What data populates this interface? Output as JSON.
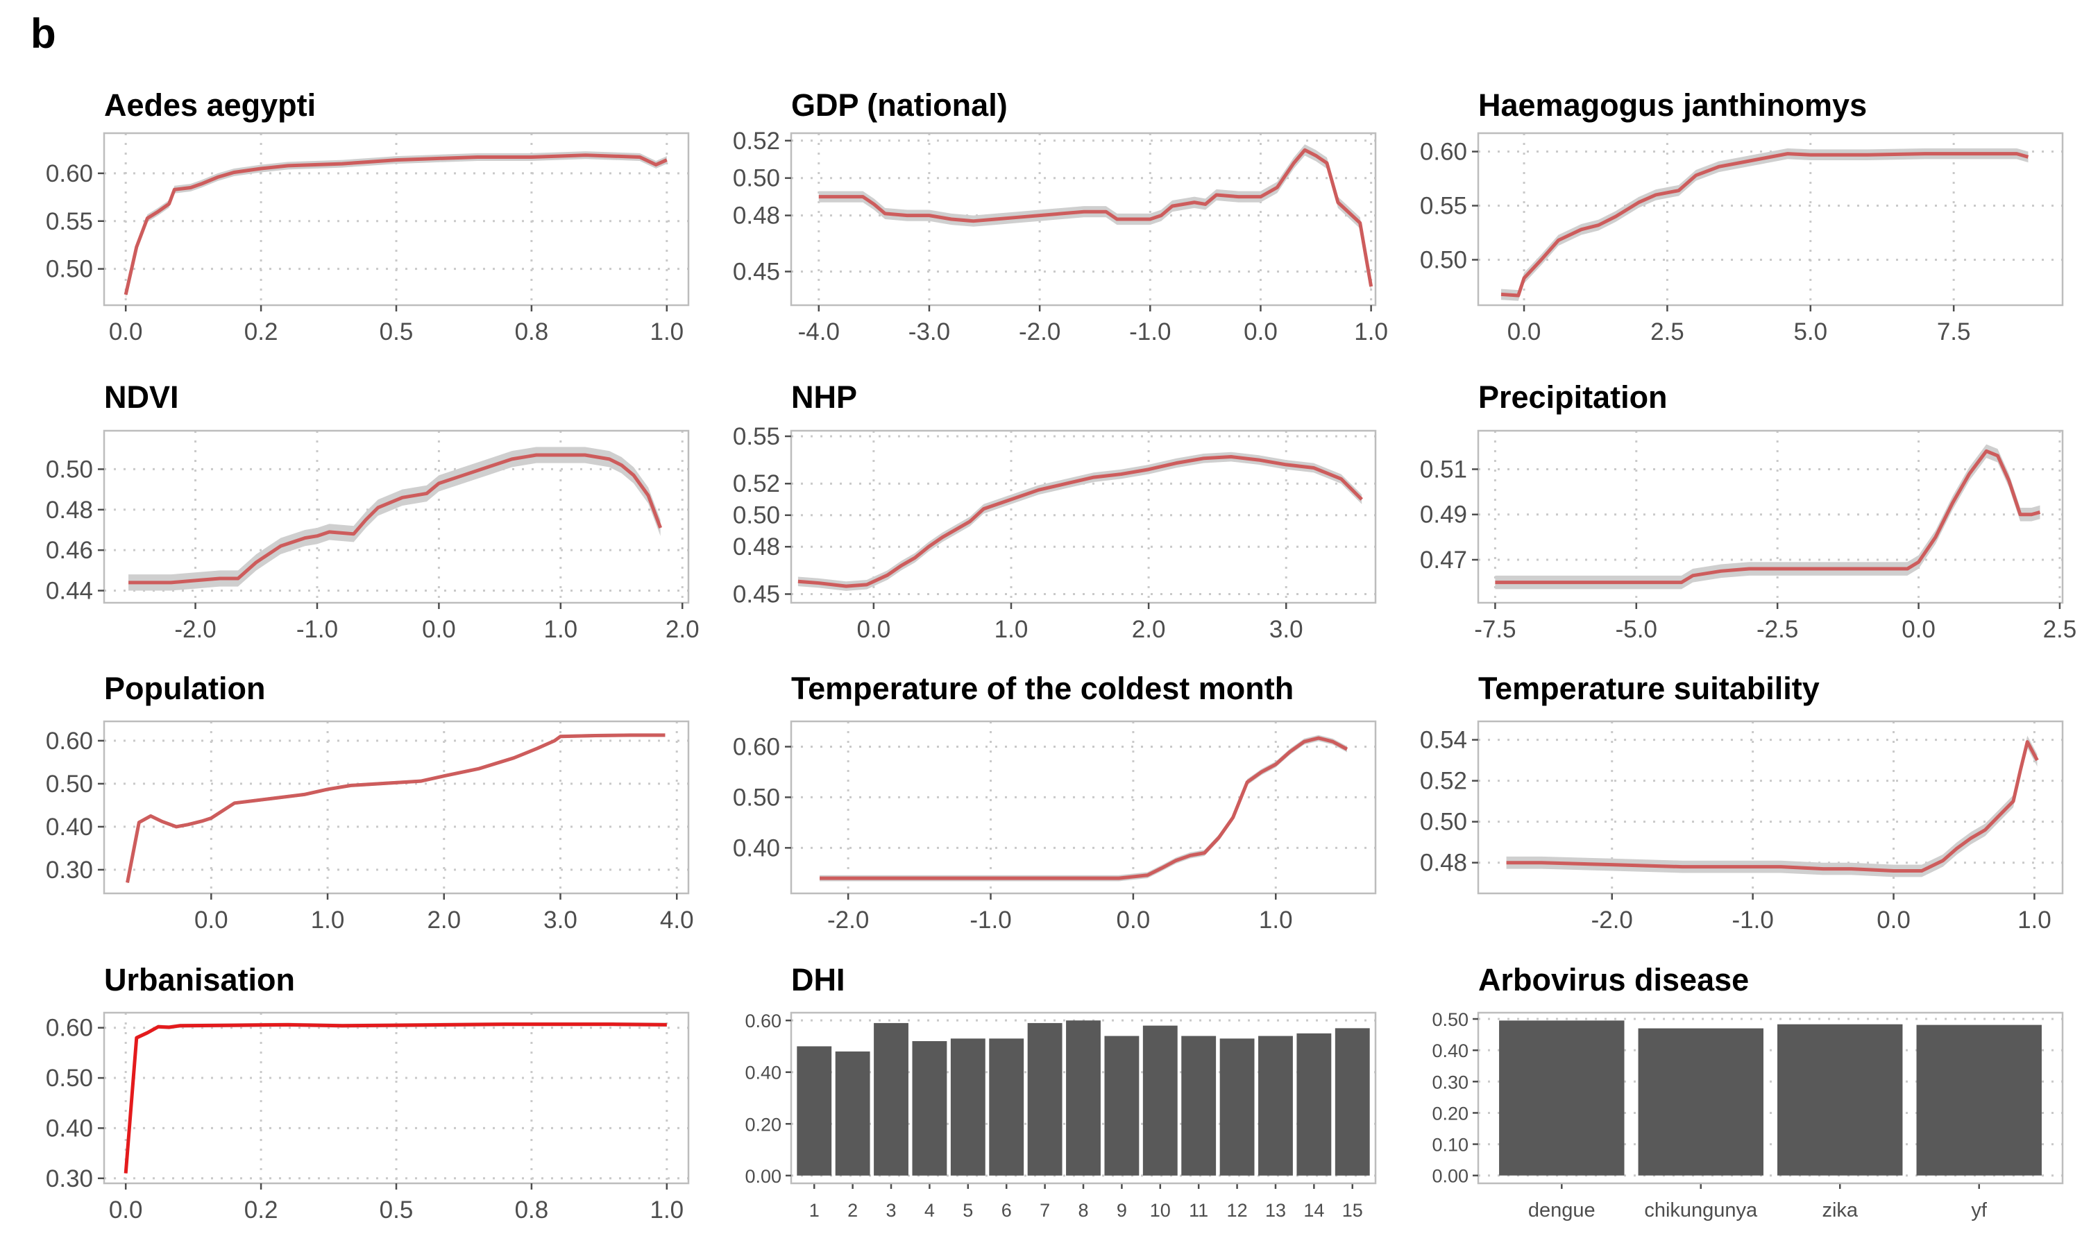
{
  "figure": {
    "panel_label": "b"
  },
  "colors": {
    "line": "#cd5c5c",
    "line_bright": "#e41a1c",
    "ribbon": "#cfcfcf",
    "bar": "#595959",
    "grid": "#c9c9c9",
    "frame": "#bdbdbd",
    "tick_text": "#4d4d4d",
    "title_text": "#000000"
  },
  "chart_data": [
    {
      "type": "line",
      "title": "Aedes aegypti",
      "xlabel": "",
      "ylabel": "",
      "xlim": [
        -0.04,
        1.04
      ],
      "ylim": [
        0.462,
        0.642
      ],
      "xticks": [
        0.0,
        0.25,
        0.5,
        0.75,
        1.0
      ],
      "xtick_labels": [
        "0.0",
        "0.2",
        "0.5",
        "0.8",
        "1.0"
      ],
      "yticks": [
        0.5,
        0.55,
        0.6
      ],
      "ytick_labels": [
        "0.50",
        "0.55",
        "0.60"
      ],
      "ribbon": 0.004,
      "series": [
        {
          "x": [
            0.0,
            0.02,
            0.04,
            0.06,
            0.08,
            0.09,
            0.12,
            0.14,
            0.17,
            0.2,
            0.25,
            0.3,
            0.35,
            0.4,
            0.45,
            0.5,
            0.55,
            0.6,
            0.65,
            0.7,
            0.75,
            0.8,
            0.85,
            0.9,
            0.95,
            0.98,
            1.0
          ],
          "y": [
            0.473,
            0.523,
            0.553,
            0.56,
            0.568,
            0.583,
            0.585,
            0.589,
            0.596,
            0.601,
            0.605,
            0.608,
            0.609,
            0.61,
            0.612,
            0.614,
            0.615,
            0.616,
            0.617,
            0.617,
            0.617,
            0.618,
            0.619,
            0.618,
            0.617,
            0.609,
            0.614
          ]
        }
      ]
    },
    {
      "type": "line",
      "title": "GDP (national)",
      "xlabel": "",
      "ylabel": "",
      "xlim": [
        -4.25,
        1.04
      ],
      "ylim": [
        0.432,
        0.524
      ],
      "xticks": [
        -4.0,
        -3.0,
        -2.0,
        -1.0,
        0.0,
        1.0
      ],
      "xtick_labels": [
        "-4.0",
        "-3.0",
        "-2.0",
        "-1.0",
        "0.0",
        "1.0"
      ],
      "yticks": [
        0.45,
        0.48,
        0.5,
        0.52
      ],
      "ytick_labels": [
        "0.45",
        "0.48",
        "0.50",
        "0.52"
      ],
      "ribbon": 0.003,
      "series": [
        {
          "x": [
            -4.0,
            -3.8,
            -3.6,
            -3.5,
            -3.4,
            -3.2,
            -3.0,
            -2.8,
            -2.6,
            -2.4,
            -2.2,
            -2.0,
            -1.8,
            -1.6,
            -1.4,
            -1.3,
            -1.2,
            -1.0,
            -0.9,
            -0.8,
            -0.6,
            -0.5,
            -0.4,
            -0.2,
            0.0,
            0.15,
            0.3,
            0.4,
            0.5,
            0.6,
            0.7,
            0.9,
            1.0
          ],
          "y": [
            0.49,
            0.49,
            0.49,
            0.486,
            0.481,
            0.48,
            0.48,
            0.478,
            0.477,
            0.478,
            0.479,
            0.48,
            0.481,
            0.482,
            0.482,
            0.478,
            0.478,
            0.478,
            0.48,
            0.485,
            0.487,
            0.486,
            0.491,
            0.49,
            0.49,
            0.495,
            0.508,
            0.515,
            0.512,
            0.508,
            0.487,
            0.476,
            0.442
          ]
        }
      ]
    },
    {
      "type": "line",
      "title": "Haemagogus janthinomys",
      "xlabel": "",
      "ylabel": "",
      "xlim": [
        -0.8,
        9.4
      ],
      "ylim": [
        0.458,
        0.617
      ],
      "xticks": [
        0.0,
        2.5,
        5.0,
        7.5
      ],
      "xtick_labels": [
        "0.0",
        "2.5",
        "5.0",
        "7.5"
      ],
      "yticks": [
        0.5,
        0.55,
        0.6
      ],
      "ytick_labels": [
        "0.50",
        "0.55",
        "0.60"
      ],
      "ribbon": 0.005,
      "series": [
        {
          "x": [
            -0.4,
            -0.1,
            0.0,
            0.3,
            0.6,
            1.0,
            1.3,
            1.6,
            2.0,
            2.3,
            2.7,
            3.0,
            3.4,
            3.8,
            4.2,
            4.6,
            5.0,
            6.0,
            7.0,
            8.0,
            8.6,
            8.8
          ],
          "y": [
            0.468,
            0.467,
            0.483,
            0.5,
            0.518,
            0.528,
            0.532,
            0.54,
            0.553,
            0.56,
            0.564,
            0.578,
            0.586,
            0.59,
            0.594,
            0.598,
            0.597,
            0.597,
            0.598,
            0.598,
            0.598,
            0.595
          ]
        }
      ]
    },
    {
      "type": "line",
      "title": "NDVI",
      "xlabel": "",
      "ylabel": "",
      "xlim": [
        -2.75,
        2.05
      ],
      "ylim": [
        0.434,
        0.519
      ],
      "xticks": [
        -2.0,
        -1.0,
        0.0,
        1.0,
        2.0
      ],
      "xtick_labels": [
        "-2.0",
        "-1.0",
        "0.0",
        "1.0",
        "2.0"
      ],
      "yticks": [
        0.44,
        0.46,
        0.48,
        0.5
      ],
      "ytick_labels": [
        "0.44",
        "0.46",
        "0.48",
        "0.50"
      ],
      "ribbon": 0.004,
      "series": [
        {
          "x": [
            -2.55,
            -2.2,
            -2.0,
            -1.8,
            -1.65,
            -1.5,
            -1.3,
            -1.1,
            -1.0,
            -0.9,
            -0.7,
            -0.6,
            -0.5,
            -0.3,
            -0.1,
            0.0,
            0.2,
            0.4,
            0.6,
            0.8,
            1.0,
            1.2,
            1.4,
            1.5,
            1.6,
            1.72,
            1.82
          ],
          "y": [
            0.444,
            0.444,
            0.445,
            0.446,
            0.446,
            0.454,
            0.462,
            0.466,
            0.467,
            0.469,
            0.468,
            0.475,
            0.481,
            0.486,
            0.488,
            0.493,
            0.497,
            0.501,
            0.505,
            0.507,
            0.507,
            0.507,
            0.505,
            0.502,
            0.497,
            0.487,
            0.471
          ]
        }
      ]
    },
    {
      "type": "line",
      "title": "NHP",
      "xlabel": "",
      "ylabel": "",
      "xlim": [
        -0.6,
        3.65
      ],
      "ylim": [
        0.4445,
        0.5535
      ],
      "xticks": [
        0.0,
        1.0,
        2.0,
        3.0
      ],
      "xtick_labels": [
        "0.0",
        "1.0",
        "2.0",
        "3.0"
      ],
      "yticks": [
        0.45,
        0.48,
        0.5,
        0.52,
        0.55
      ],
      "ytick_labels": [
        "0.45",
        "0.48",
        "0.50",
        "0.52",
        "0.55"
      ],
      "ribbon": 0.003,
      "series": [
        {
          "x": [
            -0.55,
            -0.4,
            -0.2,
            -0.05,
            0.1,
            0.2,
            0.3,
            0.4,
            0.5,
            0.7,
            0.8,
            1.0,
            1.2,
            1.4,
            1.6,
            1.8,
            2.0,
            2.2,
            2.4,
            2.6,
            2.8,
            3.0,
            3.2,
            3.4,
            3.55
          ],
          "y": [
            0.458,
            0.457,
            0.455,
            0.456,
            0.462,
            0.468,
            0.473,
            0.48,
            0.486,
            0.496,
            0.504,
            0.51,
            0.516,
            0.52,
            0.524,
            0.526,
            0.529,
            0.533,
            0.536,
            0.537,
            0.535,
            0.532,
            0.53,
            0.523,
            0.51
          ]
        }
      ]
    },
    {
      "type": "line",
      "title": "Precipitation",
      "xlabel": "",
      "ylabel": "",
      "xlim": [
        -7.8,
        2.55
      ],
      "ylim": [
        0.451,
        0.527
      ],
      "xticks": [
        -7.5,
        -5.0,
        -2.5,
        0.0,
        2.5
      ],
      "xtick_labels": [
        "-7.5",
        "-5.0",
        "-2.5",
        "0.0",
        "2.5"
      ],
      "yticks": [
        0.47,
        0.49,
        0.51
      ],
      "ytick_labels": [
        "0.47",
        "0.49",
        "0.51"
      ],
      "ribbon": 0.003,
      "series": [
        {
          "x": [
            -7.5,
            -6.5,
            -5.5,
            -5.0,
            -4.5,
            -4.2,
            -4.0,
            -3.5,
            -3.0,
            -2.5,
            -2.0,
            -1.5,
            -1.0,
            -0.5,
            -0.2,
            0.0,
            0.3,
            0.6,
            0.9,
            1.2,
            1.4,
            1.6,
            1.8,
            2.0,
            2.15
          ],
          "y": [
            0.46,
            0.46,
            0.46,
            0.46,
            0.46,
            0.46,
            0.463,
            0.465,
            0.466,
            0.466,
            0.466,
            0.466,
            0.466,
            0.466,
            0.466,
            0.469,
            0.48,
            0.495,
            0.508,
            0.518,
            0.516,
            0.505,
            0.49,
            0.49,
            0.491
          ]
        }
      ]
    },
    {
      "type": "line",
      "title": "Population",
      "xlabel": "",
      "ylabel": "",
      "xlim": [
        -0.92,
        4.1
      ],
      "ylim": [
        0.245,
        0.645
      ],
      "xticks": [
        0.0,
        1.0,
        2.0,
        3.0,
        4.0
      ],
      "xtick_labels": [
        "0.0",
        "1.0",
        "2.0",
        "3.0",
        "4.0"
      ],
      "yticks": [
        0.3,
        0.4,
        0.5,
        0.6
      ],
      "ytick_labels": [
        "0.30",
        "0.40",
        "0.50",
        "0.60"
      ],
      "ribbon": 0.004,
      "series": [
        {
          "x": [
            -0.72,
            -0.62,
            -0.52,
            -0.42,
            -0.3,
            -0.2,
            -0.08,
            0.0,
            0.2,
            0.5,
            0.8,
            1.0,
            1.2,
            1.5,
            1.8,
            2.0,
            2.3,
            2.6,
            2.8,
            2.95,
            3.0,
            3.3,
            3.6,
            3.9
          ],
          "y": [
            0.27,
            0.41,
            0.425,
            0.412,
            0.4,
            0.405,
            0.413,
            0.42,
            0.455,
            0.465,
            0.475,
            0.487,
            0.496,
            0.501,
            0.506,
            0.518,
            0.535,
            0.56,
            0.582,
            0.6,
            0.61,
            0.612,
            0.613,
            0.613
          ]
        }
      ]
    },
    {
      "type": "line",
      "title": "Temperature of the coldest month",
      "xlabel": "",
      "ylabel": "",
      "xlim": [
        -2.4,
        1.7
      ],
      "ylim": [
        0.31,
        0.65
      ],
      "xticks": [
        -2.0,
        -1.0,
        0.0,
        1.0
      ],
      "xtick_labels": [
        "-2.0",
        "-1.0",
        "0.0",
        "1.0"
      ],
      "yticks": [
        0.4,
        0.5,
        0.6
      ],
      "ytick_labels": [
        "0.40",
        "0.50",
        "0.60"
      ],
      "ribbon": 0.006,
      "series": [
        {
          "x": [
            -2.2,
            -1.5,
            -1.0,
            -0.5,
            -0.1,
            0.0,
            0.1,
            0.2,
            0.3,
            0.4,
            0.5,
            0.6,
            0.7,
            0.8,
            0.9,
            1.0,
            1.1,
            1.2,
            1.3,
            1.4,
            1.5
          ],
          "y": [
            0.34,
            0.34,
            0.34,
            0.34,
            0.34,
            0.343,
            0.346,
            0.36,
            0.375,
            0.385,
            0.39,
            0.42,
            0.46,
            0.53,
            0.55,
            0.565,
            0.59,
            0.61,
            0.617,
            0.61,
            0.595
          ]
        }
      ]
    },
    {
      "type": "line",
      "title": "Temperature suitability",
      "xlabel": "",
      "ylabel": "",
      "xlim": [
        -2.95,
        1.2
      ],
      "ylim": [
        0.465,
        0.549
      ],
      "xticks": [
        -2.0,
        -1.0,
        0.0,
        1.0
      ],
      "xtick_labels": [
        "-2.0",
        "-1.0",
        "0.0",
        "1.0"
      ],
      "yticks": [
        0.48,
        0.5,
        0.52,
        0.54
      ],
      "ytick_labels": [
        "0.48",
        "0.50",
        "0.52",
        "0.54"
      ],
      "ribbon": 0.003,
      "series": [
        {
          "x": [
            -2.75,
            -2.5,
            -2.0,
            -1.5,
            -1.0,
            -0.8,
            -0.5,
            -0.3,
            0.0,
            0.2,
            0.35,
            0.45,
            0.55,
            0.65,
            0.75,
            0.85,
            0.9,
            0.95,
            1.02
          ],
          "y": [
            0.48,
            0.48,
            0.479,
            0.478,
            0.478,
            0.478,
            0.477,
            0.477,
            0.476,
            0.476,
            0.481,
            0.487,
            0.492,
            0.496,
            0.503,
            0.51,
            0.525,
            0.539,
            0.53
          ]
        }
      ]
    },
    {
      "type": "line",
      "title": "Urbanisation",
      "xlabel": "",
      "ylabel": "",
      "xlim": [
        -0.04,
        1.04
      ],
      "ylim": [
        0.29,
        0.63
      ],
      "xticks": [
        0.0,
        0.25,
        0.5,
        0.75,
        1.0
      ],
      "xtick_labels": [
        "0.0",
        "0.2",
        "0.5",
        "0.8",
        "1.0"
      ],
      "yticks": [
        0.3,
        0.4,
        0.5,
        0.6
      ],
      "ytick_labels": [
        "0.30",
        "0.40",
        "0.50",
        "0.60"
      ],
      "ribbon": 0.004,
      "series": [
        {
          "x": [
            0.0,
            0.02,
            0.04,
            0.06,
            0.08,
            0.1,
            0.2,
            0.3,
            0.4,
            0.5,
            0.6,
            0.7,
            0.8,
            0.9,
            1.0
          ],
          "y": [
            0.31,
            0.58,
            0.59,
            0.602,
            0.601,
            0.604,
            0.605,
            0.606,
            0.604,
            0.605,
            0.606,
            0.607,
            0.607,
            0.607,
            0.606
          ]
        }
      ]
    },
    {
      "type": "bar",
      "title": "DHI",
      "xlabel": "",
      "ylabel": "",
      "categories": [
        "1",
        "2",
        "3",
        "4",
        "5",
        "6",
        "7",
        "8",
        "9",
        "10",
        "11",
        "12",
        "13",
        "14",
        "15"
      ],
      "values": [
        0.5,
        0.48,
        0.59,
        0.52,
        0.53,
        0.53,
        0.59,
        0.6,
        0.54,
        0.58,
        0.54,
        0.53,
        0.54,
        0.55,
        0.57
      ],
      "ylim": [
        -0.03,
        0.63
      ],
      "yticks": [
        0.0,
        0.2,
        0.4,
        0.6
      ],
      "ytick_labels": [
        "0.00",
        "0.20",
        "0.40",
        "0.60"
      ]
    },
    {
      "type": "bar",
      "title": "Arbovirus disease",
      "xlabel": "",
      "ylabel": "",
      "categories": [
        "dengue",
        "chikungunya",
        "zika",
        "yf"
      ],
      "values": [
        0.495,
        0.47,
        0.483,
        0.481
      ],
      "ylim": [
        -0.025,
        0.52
      ],
      "yticks": [
        0.0,
        0.1,
        0.2,
        0.3,
        0.4,
        0.5
      ],
      "ytick_labels": [
        "0.00",
        "0.10",
        "0.20",
        "0.30",
        "0.40",
        "0.50"
      ]
    }
  ]
}
